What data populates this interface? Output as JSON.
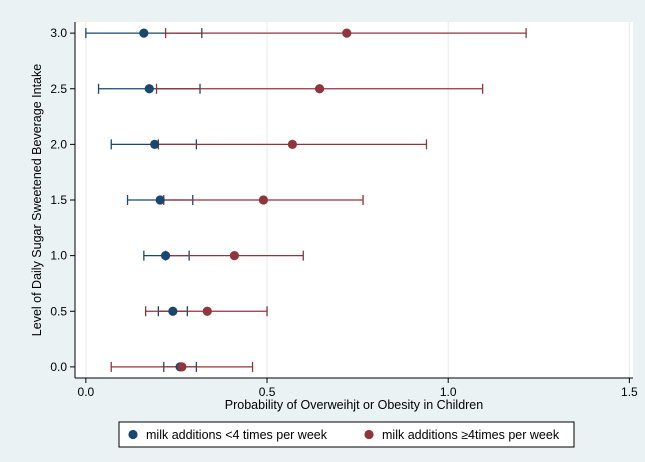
{
  "chart_data": {
    "type": "scatter",
    "subtype": "point-estimates-with-confidence-intervals",
    "orientation": "horizontal",
    "xlabel": "Probability of Overweihjt or Obesity in Children",
    "ylabel": "Level of Daily Sugar Sweetened Beverage Intake",
    "xlim": [
      -0.03,
      1.51
    ],
    "ylim": [
      -0.1,
      3.1
    ],
    "x_ticks": [
      0.0,
      0.5,
      1.0,
      1.5
    ],
    "x_tick_labels": [
      "0.0",
      "0.5",
      "1.0",
      "1.5"
    ],
    "y_ticks": [
      0.0,
      0.5,
      1.0,
      1.5,
      2.0,
      2.5,
      3.0
    ],
    "y_tick_labels": [
      "0.0",
      "0.5",
      "1.0",
      "1.5",
      "2.0",
      "2.5",
      "3.0"
    ],
    "grid": "vertical lines at x ticks",
    "legend_position": "bottom",
    "series": [
      {
        "name": "milk additions <4 times per week",
        "color": "#1a476f",
        "points": [
          {
            "y": 0.0,
            "x": 0.26,
            "lo": 0.215,
            "hi": 0.305
          },
          {
            "y": 0.5,
            "x": 0.24,
            "lo": 0.2,
            "hi": 0.28
          },
          {
            "y": 1.0,
            "x": 0.22,
            "lo": 0.16,
            "hi": 0.285
          },
          {
            "y": 1.5,
            "x": 0.205,
            "lo": 0.115,
            "hi": 0.295
          },
          {
            "y": 2.0,
            "x": 0.19,
            "lo": 0.07,
            "hi": 0.305
          },
          {
            "y": 2.5,
            "x": 0.175,
            "lo": 0.035,
            "hi": 0.315
          },
          {
            "y": 3.0,
            "x": 0.16,
            "lo": 0.0,
            "hi": 0.32
          }
        ]
      },
      {
        "name": "milk additions ≥4times per week",
        "color": "#90353b",
        "points": [
          {
            "y": 0.0,
            "x": 0.265,
            "lo": 0.07,
            "hi": 0.46
          },
          {
            "y": 0.5,
            "x": 0.335,
            "lo": 0.165,
            "hi": 0.5
          },
          {
            "y": 1.0,
            "x": 0.41,
            "lo": 0.22,
            "hi": 0.6
          },
          {
            "y": 1.5,
            "x": 0.49,
            "lo": 0.215,
            "hi": 0.765
          },
          {
            "y": 2.0,
            "x": 0.57,
            "lo": 0.2,
            "hi": 0.94
          },
          {
            "y": 2.5,
            "x": 0.645,
            "lo": 0.195,
            "hi": 1.095
          },
          {
            "y": 3.0,
            "x": 0.72,
            "lo": 0.22,
            "hi": 1.215
          }
        ]
      }
    ]
  }
}
